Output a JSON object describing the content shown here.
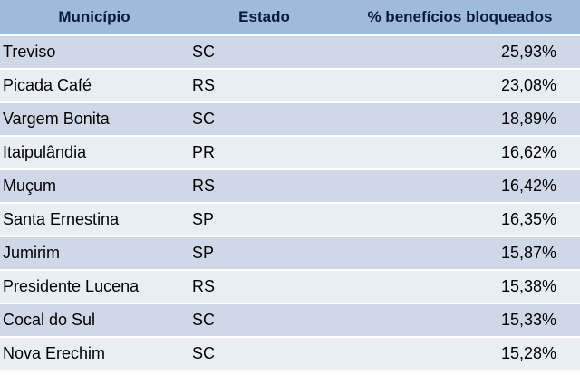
{
  "table": {
    "headers": [
      "Município",
      "Estado",
      "% benefícios bloqueados"
    ],
    "rows": [
      [
        "Treviso",
        "SC",
        "25,93%"
      ],
      [
        "Picada Café",
        "RS",
        "23,08%"
      ],
      [
        "Vargem Bonita",
        "SC",
        "18,89%"
      ],
      [
        "Itaipulândia",
        "PR",
        "16,62%"
      ],
      [
        "Muçum",
        "RS",
        "16,42%"
      ],
      [
        "Santa Ernestina",
        "SP",
        "16,35%"
      ],
      [
        "Jumirim",
        "SP",
        "15,87%"
      ],
      [
        "Presidente Lucena",
        "RS",
        "15,38%"
      ],
      [
        "Cocal do Sul",
        "SC",
        "15,33%"
      ],
      [
        "Nova Erechim",
        "SC",
        "15,28%"
      ]
    ]
  }
}
